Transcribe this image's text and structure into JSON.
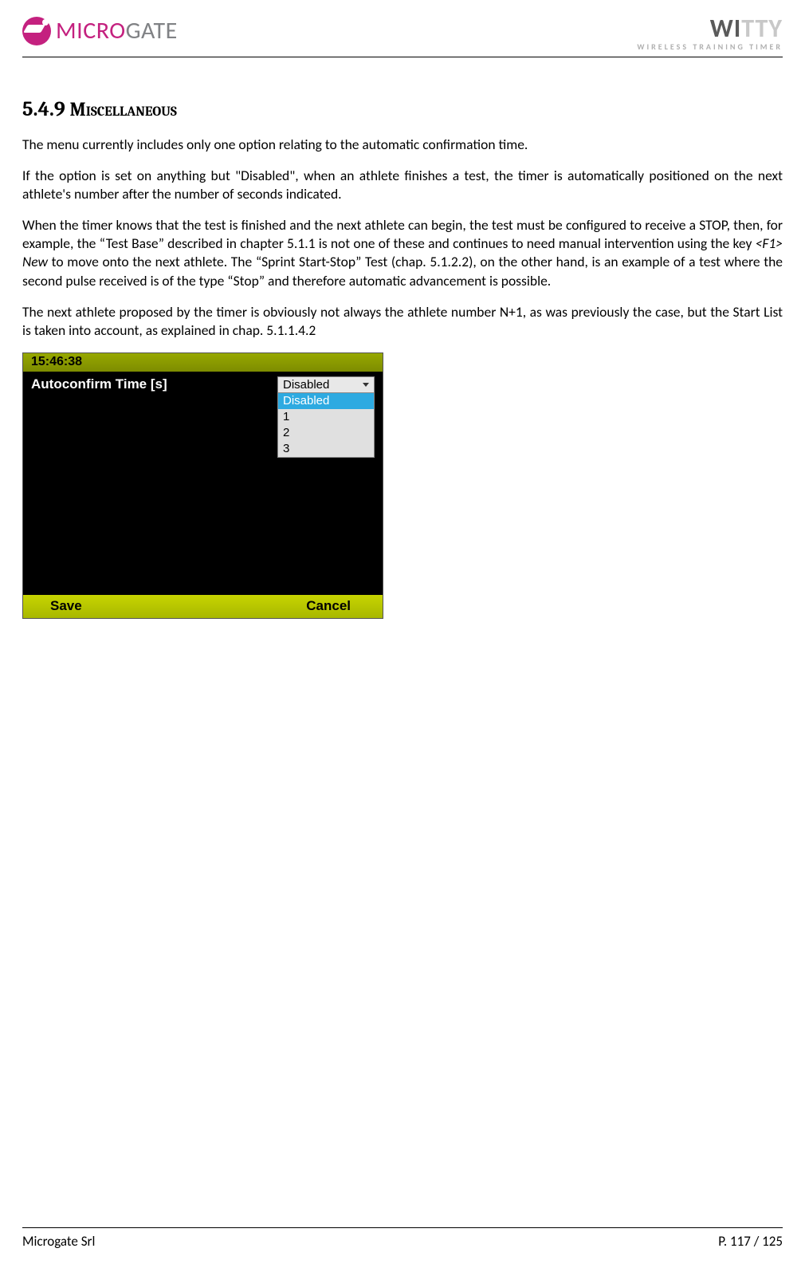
{
  "header": {
    "logo_left_pink": "MICRO",
    "logo_left_gray": "GATE",
    "logo_right_dark": "WI",
    "logo_right_light": "TTY",
    "logo_right_sub": "WIRELESS TRAINING TIMER"
  },
  "section": {
    "number": "5.4.9",
    "title": "Miscellaneous"
  },
  "paragraphs": {
    "p1": "The menu currently includes only one option relating to the automatic confirmation time.",
    "p2": "If the option is set on anything but \"Disabled\", when an athlete finishes a test, the timer is automatically positioned on the next athlete's number after the number of seconds indicated.",
    "p3a": "When the timer knows that the test is finished and the next athlete can begin, the test must be configured to receive a STOP, then, for example, the “Test Base” described in chapter 5.1.1 is not one of these and continues to need manual intervention using the key ",
    "p3_em": "<F1> New",
    "p3b": " to move onto the next athlete. The “Sprint Start-Stop” Test (chap. 5.1.2.2), on the other hand, is an example of a test where the second pulse received is of the type “Stop” and therefore automatic advancement is possible.",
    "p4": "The next athlete proposed by the timer is obviously not always the athlete number N+1, as was previously the case, but the Start List is taken into account, as explained in chap. 5.1.1.4.2"
  },
  "device": {
    "time": "15:46:38",
    "field_label": "Autoconfirm Time [s]",
    "selected": "Disabled",
    "options": [
      "Disabled",
      "1",
      "2",
      "3"
    ],
    "highlighted_index": 0,
    "btn_save": "Save",
    "btn_cancel": "Cancel",
    "colors": {
      "bar_bg": "#8a9a00",
      "body_bg": "#000000",
      "highlight": "#2daae1",
      "dropdown_bg": "#e0e0e0"
    }
  },
  "footer": {
    "left": "Microgate Srl",
    "right": "P. 117 / 125"
  }
}
